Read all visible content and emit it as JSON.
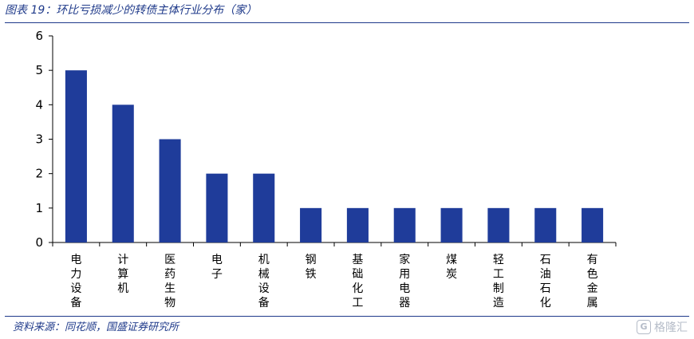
{
  "figure": {
    "title": "图表 19：环比亏损减少的转债主体行业分布（家）",
    "source": "资料来源：同花顺，国盛证券研究所",
    "watermark": "格隆汇",
    "watermark_icon": "G"
  },
  "colors": {
    "bar": "#1f3c9a",
    "axis": "#000000",
    "rule": "#1f3a8a"
  },
  "chart_data": {
    "type": "bar",
    "title": "",
    "xlabel": "",
    "ylabel": "",
    "ylim": [
      0,
      6
    ],
    "yticks": [
      0,
      1,
      2,
      3,
      4,
      5,
      6
    ],
    "grid": false,
    "legend": "none",
    "categories": [
      "电力设备",
      "计算机",
      "医药生物",
      "电子",
      "机械设备",
      "钢铁",
      "基础化工",
      "家用电器",
      "煤炭",
      "轻工制造",
      "石油石化",
      "有色金属"
    ],
    "values": [
      5,
      4,
      3,
      2,
      2,
      1,
      1,
      1,
      1,
      1,
      1,
      1
    ]
  }
}
